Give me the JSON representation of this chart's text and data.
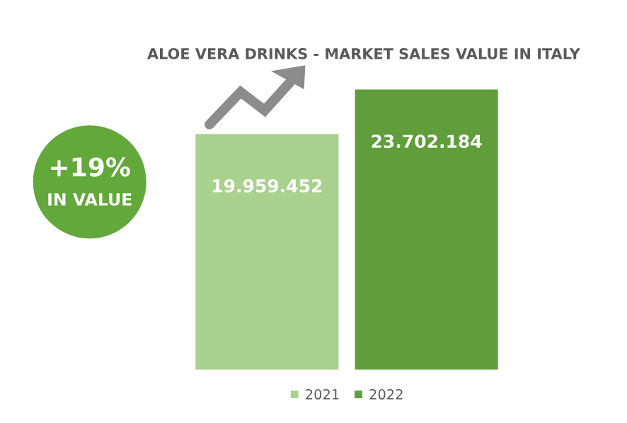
{
  "chart_data": {
    "type": "bar",
    "title": "ALOE VERA DRINKS - MARKET SALES VALUE IN ITALY",
    "categories": [
      null
    ],
    "series": [
      {
        "name": "2021",
        "color": "#a9d18e",
        "values": [
          19959452
        ],
        "value_labels": [
          "19.959.452"
        ]
      },
      {
        "name": "2022",
        "color": "#5f9e3a",
        "values": [
          23702184
        ],
        "value_labels": [
          "23.702.184"
        ]
      }
    ],
    "tick_labels": false,
    "grid": false,
    "legend": "bottom",
    "annotations": [
      "+19%",
      "IN VALUE"
    ]
  }
}
